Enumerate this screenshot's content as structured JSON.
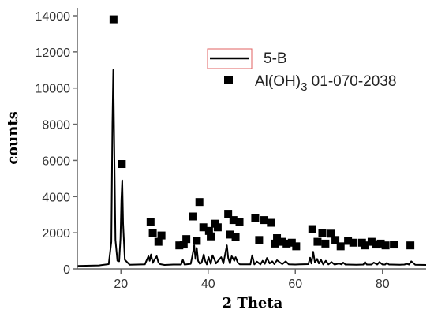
{
  "chart_data": {
    "type": "line",
    "title": "",
    "xlabel": "2 Theta",
    "ylabel": "counts",
    "xlim": [
      10,
      90
    ],
    "ylim": [
      0,
      14000
    ],
    "xticks": [
      20,
      40,
      60,
      80
    ],
    "yticks": [
      0,
      2000,
      4000,
      6000,
      8000,
      10000,
      12000,
      14000
    ],
    "grid": false,
    "legend_position": "top-right",
    "series": [
      {
        "name": "5-B",
        "kind": "line",
        "color": "#000000",
        "x": [
          10,
          15,
          17.2,
          17.8,
          18.05,
          18.25,
          18.45,
          18.75,
          19.2,
          19.6,
          19.9,
          20.1,
          20.3,
          20.5,
          20.9,
          22,
          25.5,
          26.3,
          26.6,
          26.9,
          27.3,
          27.7,
          28.2,
          28.6,
          29,
          30,
          32,
          33.8,
          34.2,
          34.6,
          36,
          36.4,
          36.8,
          37.1,
          37.4,
          37.7,
          38.1,
          38.5,
          39,
          39.3,
          39.7,
          40.1,
          40.6,
          41,
          41.4,
          41.8,
          42.4,
          43,
          43.5,
          44,
          44.3,
          44.6,
          45,
          45.4,
          46,
          46.3,
          46.8,
          47.3,
          48,
          49,
          49.7,
          50.1,
          50.6,
          51.2,
          52,
          52.5,
          53,
          53.5,
          54.1,
          54.7,
          55.2,
          55.8,
          57,
          57.8,
          58.5,
          60,
          61,
          63,
          63.4,
          63.7,
          64.1,
          64.5,
          65,
          65.4,
          65.9,
          66.4,
          67,
          67.6,
          68.3,
          69,
          70,
          70.6,
          71,
          71.5,
          72,
          74,
          75.6,
          76,
          76.4,
          77.5,
          78,
          78.8,
          79.3,
          80,
          80.6,
          81,
          81.5,
          82,
          84,
          85,
          85.6,
          86.1,
          86.6,
          87.5,
          90
        ],
        "y": [
          160,
          190,
          260,
          1500,
          8000,
          11000,
          7000,
          1600,
          450,
          420,
          1700,
          3800,
          4900,
          2500,
          500,
          230,
          250,
          700,
          450,
          800,
          330,
          520,
          700,
          350,
          260,
          220,
          240,
          240,
          500,
          240,
          280,
          750,
          1300,
          550,
          1150,
          450,
          280,
          340,
          800,
          450,
          250,
          650,
          280,
          750,
          550,
          300,
          480,
          650,
          300,
          950,
          1300,
          600,
          300,
          700,
          450,
          650,
          350,
          250,
          250,
          250,
          250,
          750,
          250,
          400,
          250,
          450,
          280,
          600,
          300,
          420,
          260,
          480,
          260,
          420,
          250,
          240,
          250,
          260,
          620,
          300,
          950,
          350,
          550,
          300,
          500,
          250,
          450,
          250,
          380,
          240,
          300,
          250,
          350,
          240,
          240,
          230,
          240,
          380,
          240,
          240,
          350,
          240,
          380,
          240,
          240,
          330,
          240,
          240,
          230,
          240,
          280,
          240,
          420,
          230,
          220
        ]
      },
      {
        "name": "Al(OH)3 01-070-2038",
        "kind": "scatter",
        "marker": "square",
        "color": "#000000",
        "x": [
          18.3,
          20.2,
          26.8,
          27.3,
          28.6,
          29.3,
          33.4,
          34.4,
          35.0,
          36.6,
          37.4,
          38.0,
          38.9,
          40.2,
          40.6,
          41.6,
          42.2,
          44.6,
          45.1,
          45.8,
          46.3,
          47.2,
          50.8,
          51.7,
          52.9,
          54.4,
          55.4,
          55.8,
          56.9,
          58.0,
          59.2,
          60.2,
          63.9,
          65.1,
          66.2,
          66.9,
          68.2,
          69.2,
          70.4,
          72.1,
          73.3,
          75.3,
          75.9,
          77.5,
          78.5,
          79.6,
          80.7,
          82.6,
          86.4
        ],
        "y": [
          13800,
          5800,
          2600,
          2000,
          1500,
          1850,
          1300,
          1350,
          1650,
          2900,
          1550,
          3700,
          2300,
          2100,
          1800,
          2500,
          2300,
          3050,
          1900,
          2700,
          1750,
          2600,
          2800,
          1600,
          2700,
          2550,
          1400,
          1700,
          1500,
          1400,
          1450,
          1250,
          2200,
          1500,
          2000,
          1400,
          1950,
          1600,
          1250,
          1550,
          1450,
          1450,
          1300,
          1500,
          1350,
          1400,
          1300,
          1350,
          1300
        ]
      }
    ],
    "colors": {
      "legend_box_border": "#e06060"
    }
  }
}
